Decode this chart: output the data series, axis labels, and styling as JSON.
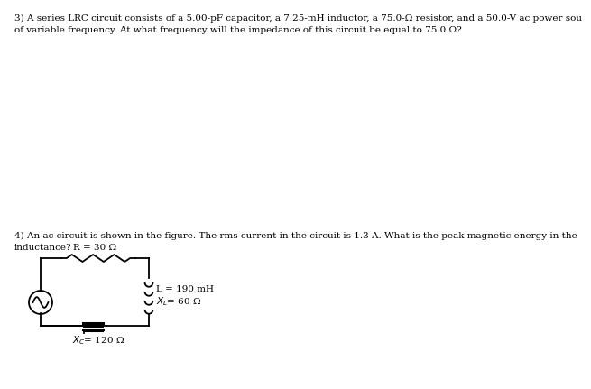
{
  "problem3_line1": "3) A series LRC circuit consists of a 5.00-pF capacitor, a 7.25-mH inductor, a 75.0-Ω resistor, and a 50.0-V ac power sou",
  "problem3_line2": "of variable frequency. At what frequency will the impedance of this circuit be equal to 75.0 Ω?",
  "problem4_line1": "4) An ac circuit is shown in the figure. The rms current in the circuit is 1.3 A. What is the peak magnetic energy in the",
  "problem4_line2": "inductance?",
  "R_label": "R = 30 Ω",
  "L_label": "L = 190 mH",
  "XL_val": "= 60 Ω",
  "XC_val": "= 120 Ω",
  "bg_color": "#ffffff",
  "text_color": "#000000",
  "font_size": 7.5
}
